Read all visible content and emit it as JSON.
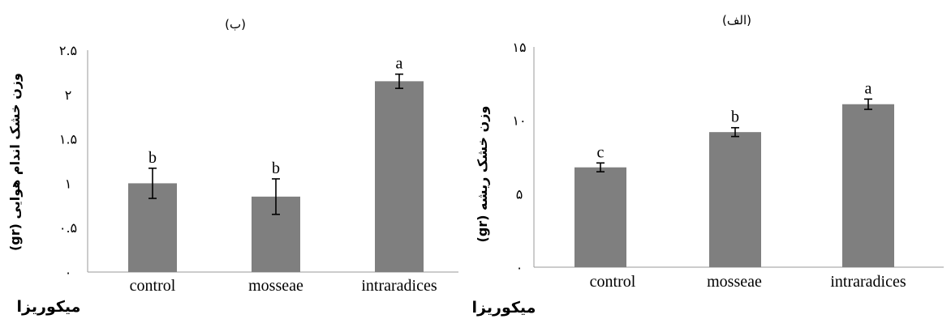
{
  "colors": {
    "bar": "#7f7f7f",
    "axis": "#9a9a9a",
    "text": "#000000"
  },
  "chart_data": [
    {
      "type": "bar",
      "title": "(ب)",
      "ylabel": "وزن خشک اندام هوایی (gr)",
      "xlabel": "میکوریزا",
      "categories": [
        "control",
        "mosseae",
        "intraradices"
      ],
      "values": [
        1.0,
        0.85,
        2.15
      ],
      "errors": [
        0.17,
        0.2,
        0.08
      ],
      "data_labels": [
        "b",
        "b",
        "a"
      ],
      "ylim": [
        0,
        2.5
      ],
      "yticks": [
        0,
        0.5,
        1,
        1.5,
        2,
        2.5
      ],
      "ytick_labels": [
        "۰",
        "۰.۵",
        "۱",
        "۱.۵",
        "۲",
        "۲.۵"
      ],
      "grid": false
    },
    {
      "type": "bar",
      "title": "(الف)",
      "ylabel": "وزن خشک ریشه (gr)",
      "xlabel": "میکوریزا",
      "categories": [
        "control",
        "mosseae",
        "intraradices"
      ],
      "values": [
        6.8,
        9.2,
        11.1
      ],
      "errors": [
        0.3,
        0.3,
        0.35
      ],
      "data_labels": [
        "c",
        "b",
        "a"
      ],
      "ylim": [
        0,
        15
      ],
      "yticks": [
        0,
        5,
        10,
        15
      ],
      "ytick_labels": [
        "۰",
        "۵",
        "۱۰",
        "۱۵"
      ],
      "grid": false
    }
  ]
}
